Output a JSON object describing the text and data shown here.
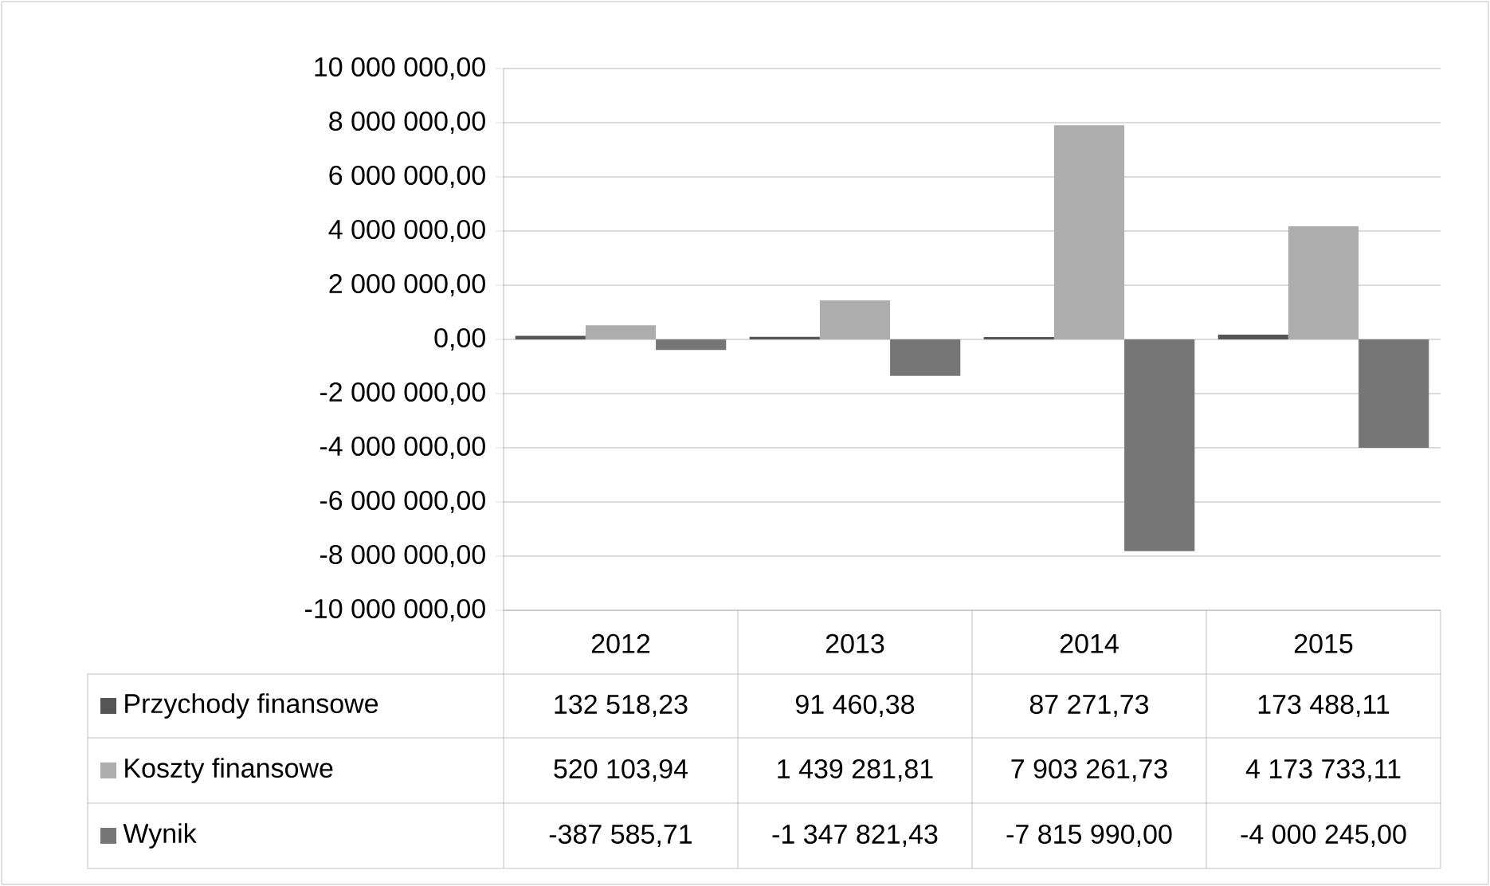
{
  "chart_data": {
    "type": "bar",
    "categories": [
      "2012",
      "2013",
      "2014",
      "2015"
    ],
    "series": [
      {
        "name": "Przychody finansowe",
        "color": "#555555",
        "values": [
          132518.23,
          91460.38,
          87271.73,
          173488.11
        ],
        "value_labels": [
          "132 518,23",
          "91 460,38",
          "87 271,73",
          "173 488,11"
        ]
      },
      {
        "name": "Koszty finansowe",
        "color": "#adadad",
        "values": [
          520103.94,
          1439281.81,
          7903261.73,
          4173733.11
        ],
        "value_labels": [
          "520 103,94",
          "1 439 281,81",
          "7 903 261,73",
          "4 173 733,11"
        ]
      },
      {
        "name": "Wynik",
        "color": "#767676",
        "values": [
          -387585.71,
          -1347821.43,
          -7815990.0,
          -4000245.0
        ],
        "value_labels": [
          "-387 585,71",
          "-1 347 821,43",
          "-7 815 990,00",
          "-4 000 245,00"
        ]
      }
    ],
    "ylim": [
      -10000000,
      10000000
    ],
    "yticks": [
      {
        "value": -10000000,
        "label": "-10 000 000,00"
      },
      {
        "value": -8000000,
        "label": "-8 000 000,00"
      },
      {
        "value": -6000000,
        "label": "-6 000 000,00"
      },
      {
        "value": -4000000,
        "label": "-4 000 000,00"
      },
      {
        "value": -2000000,
        "label": "-2 000 000,00"
      },
      {
        "value": 0,
        "label": "0,00"
      },
      {
        "value": 2000000,
        "label": "2 000 000,00"
      },
      {
        "value": 4000000,
        "label": "4 000 000,00"
      },
      {
        "value": 6000000,
        "label": "6 000 000,00"
      },
      {
        "value": 8000000,
        "label": "8 000 000,00"
      },
      {
        "value": 10000000,
        "label": "10 000 000,00"
      }
    ],
    "grid": "y",
    "legend": "bottom left"
  }
}
